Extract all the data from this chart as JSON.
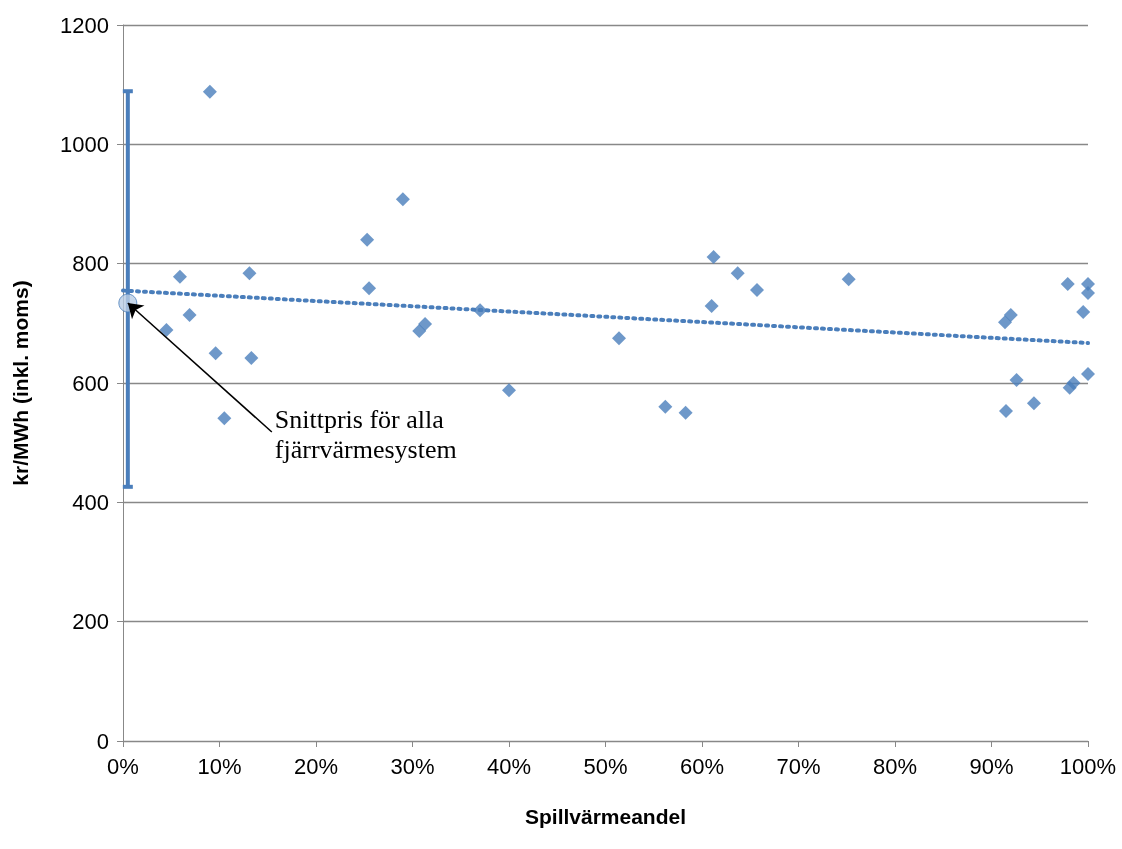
{
  "chart_data": {
    "type": "scatter",
    "xlabel": "Spillvärmeandel",
    "ylabel": "kr/MWh (inkl. moms)",
    "xlim": [
      0,
      100
    ],
    "xticks": [
      {
        "value": 0,
        "label": "0%"
      },
      {
        "value": 10,
        "label": "10%"
      },
      {
        "value": 20,
        "label": "20%"
      },
      {
        "value": 30,
        "label": "30%"
      },
      {
        "value": 40,
        "label": "40%"
      },
      {
        "value": 50,
        "label": "50%"
      },
      {
        "value": 60,
        "label": "60%"
      },
      {
        "value": 70,
        "label": "70%"
      },
      {
        "value": 80,
        "label": "80%"
      },
      {
        "value": 90,
        "label": "90%"
      },
      {
        "value": 100,
        "label": "100%"
      }
    ],
    "ylim": [
      0,
      1200
    ],
    "yticks": [
      0,
      200,
      400,
      600,
      800,
      1000,
      1200
    ],
    "grid": "y",
    "series": [
      {
        "marker": "diamond",
        "color": "#4a7ebb",
        "x": [
          4.5,
          5.9,
          6.9,
          9.0,
          9.6,
          10.5,
          13.1,
          13.3,
          25.3,
          25.5,
          29.0,
          30.7,
          31.3,
          37.0,
          40.0,
          51.4,
          56.2,
          58.3,
          61.0,
          61.2,
          63.7,
          65.7,
          75.2,
          91.4,
          92.0,
          91.5,
          92.6,
          94.4,
          97.9,
          98.1,
          98.5,
          99.5,
          100,
          100,
          100
        ],
        "values": [
          689,
          778,
          714,
          1088,
          650,
          541,
          784,
          642,
          840,
          759,
          908,
          687,
          699,
          722,
          588,
          675,
          560,
          550,
          729,
          811,
          784,
          756,
          774,
          702,
          714,
          553,
          605,
          566,
          766,
          592,
          600,
          719,
          766,
          751,
          615
        ]
      },
      {
        "type": "scatter",
        "marker": "circle",
        "color": "#b9cde5",
        "x": [
          0.5
        ],
        "values": [
          734
        ],
        "errors": [
          [
            426,
            1089
          ]
        ]
      },
      {
        "type": "line",
        "marker": "none",
        "line_style": "dotted",
        "color": "#4a7ebb",
        "x": [
          0,
          100
        ],
        "values": [
          755,
          667
        ]
      }
    ],
    "annotations": [
      {
        "text": "Snittpris för alla\nfjärrvärmesystem",
        "x": 0.5,
        "y": 734
      }
    ]
  }
}
